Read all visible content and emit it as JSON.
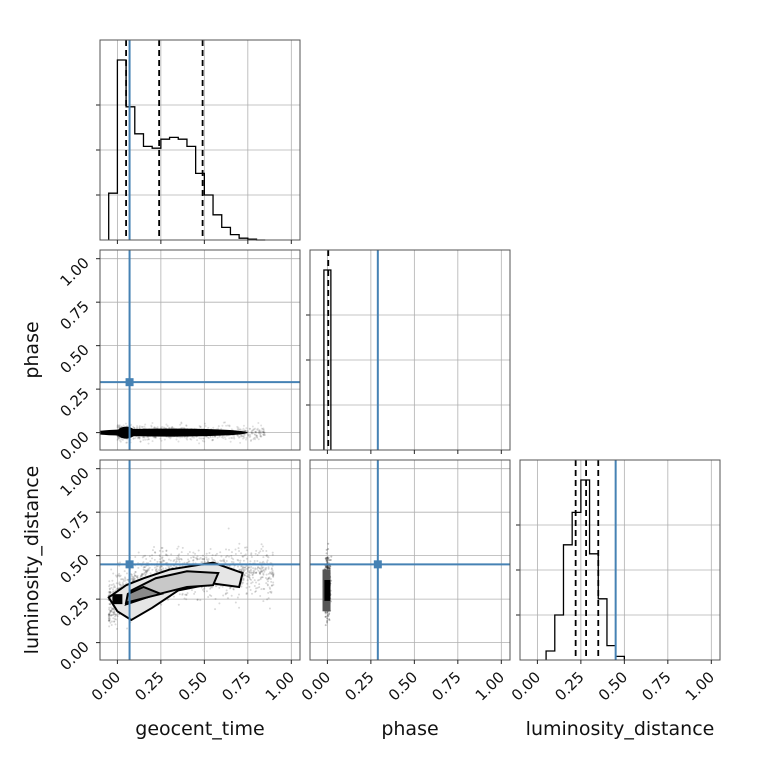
{
  "chart_data": {
    "type": "corner",
    "parameters": [
      "geocent_time",
      "phase",
      "luminosity_distance"
    ],
    "range": [
      -0.1,
      1.05
    ],
    "ticks": [
      0.0,
      0.25,
      0.5,
      0.75,
      1.0
    ],
    "tick_labels": [
      "0.00",
      "0.25",
      "0.50",
      "0.75",
      "1.00"
    ],
    "grid": true,
    "truths": {
      "geocent_time": 0.07,
      "phase": 0.29,
      "luminosity_distance": 0.45
    },
    "truth_color": "#4682b4",
    "quantiles": {
      "geocent_time": [
        0.05,
        0.24,
        0.49
      ],
      "phase": [
        0.005
      ],
      "luminosity_distance": [
        0.22,
        0.28,
        0.35
      ]
    },
    "histograms": {
      "geocent_time": {
        "edges": [
          -0.05,
          0.0,
          0.05,
          0.1,
          0.15,
          0.2,
          0.25,
          0.3,
          0.35,
          0.4,
          0.45,
          0.5,
          0.55,
          0.6,
          0.65,
          0.7,
          0.75,
          0.8,
          0.85
        ],
        "counts": [
          0.26,
          1.0,
          0.74,
          0.59,
          0.52,
          0.51,
          0.56,
          0.57,
          0.56,
          0.52,
          0.37,
          0.25,
          0.14,
          0.07,
          0.03,
          0.01,
          0.005,
          0.0
        ]
      },
      "phase": {
        "edges": [
          -0.02,
          0.0,
          0.02
        ],
        "counts": [
          1.0,
          1.0
        ]
      },
      "luminosity_distance": {
        "edges": [
          0.05,
          0.1,
          0.15,
          0.2,
          0.25,
          0.3,
          0.35,
          0.4,
          0.45,
          0.5
        ],
        "counts": [
          0.05,
          0.25,
          0.64,
          0.82,
          1.0,
          0.59,
          0.34,
          0.08,
          0.02
        ]
      }
    },
    "contours_2d": {
      "geocent_time_vs_phase": {
        "x_range": [
          0.0,
          0.85
        ],
        "y_center": 0.0,
        "y_spread": 0.02
      },
      "geocent_time_vs_luminosity_distance": {
        "levels": [
          [
            [
              0.0,
              0.18
            ],
            [
              0.08,
              0.13
            ],
            [
              0.2,
              0.2
            ],
            [
              0.35,
              0.3
            ],
            [
              0.55,
              0.34
            ],
            [
              0.7,
              0.32
            ],
            [
              0.72,
              0.4
            ],
            [
              0.55,
              0.46
            ],
            [
              0.3,
              0.42
            ],
            [
              0.15,
              0.37
            ],
            [
              0.05,
              0.33
            ],
            [
              -0.05,
              0.26
            ]
          ],
          [
            [
              0.05,
              0.22
            ],
            [
              0.2,
              0.27
            ],
            [
              0.4,
              0.32
            ],
            [
              0.55,
              0.33
            ],
            [
              0.58,
              0.4
            ],
            [
              0.4,
              0.41
            ],
            [
              0.22,
              0.37
            ],
            [
              0.08,
              0.3
            ]
          ],
          [
            [
              0.05,
              0.23
            ],
            [
              0.25,
              0.28
            ],
            [
              0.15,
              0.32
            ],
            [
              0.06,
              0.28
            ]
          ]
        ]
      },
      "phase_vs_luminosity_distance": {
        "x_center": 0.0,
        "y_range": [
          0.15,
          0.55
        ]
      }
    }
  }
}
